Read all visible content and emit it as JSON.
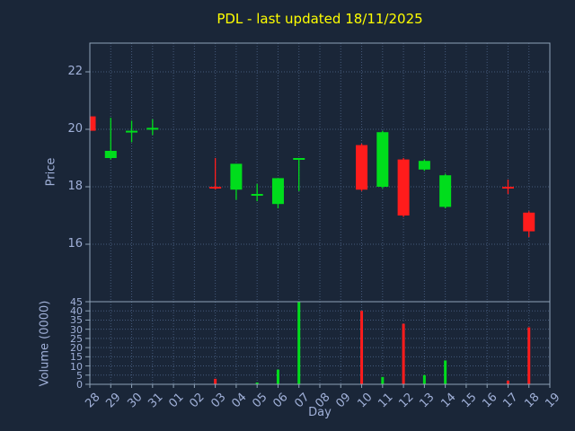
{
  "chart_data": {
    "type": "candlestick",
    "title": "PDL - last updated 18/11/2025",
    "xlabel": "Day",
    "ylabel_price": "Price",
    "ylabel_volume": "Volume (0000)",
    "x_ticks": [
      "28",
      "29",
      "30",
      "31",
      "01",
      "02",
      "03",
      "04",
      "05",
      "06",
      "07",
      "08",
      "09",
      "10",
      "11",
      "12",
      "13",
      "14",
      "15",
      "16",
      "17",
      "18",
      "19"
    ],
    "price_ylim": [
      14.0,
      23.0
    ],
    "price_ticks": [
      16,
      18,
      20,
      22
    ],
    "volume_ylim": [
      0,
      45
    ],
    "volume_ticks": [
      0,
      5,
      10,
      15,
      20,
      25,
      30,
      35,
      40,
      45
    ],
    "grid": true,
    "candles": [
      {
        "day": "28",
        "open": 20.45,
        "close": 19.95,
        "high": 20.45,
        "low": 19.95,
        "color": "red"
      },
      {
        "day": "29",
        "open": 19.0,
        "close": 19.25,
        "high": 20.4,
        "low": 18.95,
        "color": "green"
      },
      {
        "day": "30",
        "open": 19.9,
        "close": 19.95,
        "high": 20.3,
        "low": 19.55,
        "color": "green"
      },
      {
        "day": "31",
        "open": 20.0,
        "close": 20.05,
        "high": 20.35,
        "low": 19.8,
        "color": "green"
      },
      {
        "day": "03",
        "open": 18.0,
        "close": 18.0,
        "high": 19.0,
        "low": 17.9,
        "color": "red"
      },
      {
        "day": "04",
        "open": 17.9,
        "close": 18.8,
        "high": 18.8,
        "low": 17.55,
        "color": "green"
      },
      {
        "day": "05",
        "open": 17.7,
        "close": 17.75,
        "high": 18.1,
        "low": 17.5,
        "color": "green"
      },
      {
        "day": "06",
        "open": 17.4,
        "close": 18.3,
        "high": 18.3,
        "low": 17.25,
        "color": "green"
      },
      {
        "day": "07",
        "open": 19.0,
        "close": 19.0,
        "high": 19.0,
        "low": 17.85,
        "color": "green"
      },
      {
        "day": "10",
        "open": 19.45,
        "close": 17.9,
        "high": 19.5,
        "low": 17.85,
        "color": "red"
      },
      {
        "day": "11",
        "open": 18.0,
        "close": 19.9,
        "high": 19.95,
        "low": 17.95,
        "color": "green"
      },
      {
        "day": "12",
        "open": 18.95,
        "close": 17.0,
        "high": 19.0,
        "low": 16.95,
        "color": "red"
      },
      {
        "day": "13",
        "open": 18.6,
        "close": 18.9,
        "high": 18.95,
        "low": 18.55,
        "color": "green"
      },
      {
        "day": "14",
        "open": 17.3,
        "close": 18.4,
        "high": 18.45,
        "low": 17.25,
        "color": "green"
      },
      {
        "day": "17",
        "open": 18.0,
        "close": 18.0,
        "high": 18.25,
        "low": 17.75,
        "color": "red"
      },
      {
        "day": "18",
        "open": 17.1,
        "close": 16.45,
        "high": 17.15,
        "low": 16.25,
        "color": "red"
      }
    ],
    "volumes": [
      {
        "day": "03",
        "value": 3,
        "color": "red"
      },
      {
        "day": "05",
        "value": 1,
        "color": "green"
      },
      {
        "day": "06",
        "value": 8,
        "color": "green"
      },
      {
        "day": "07",
        "value": 45,
        "color": "green"
      },
      {
        "day": "10",
        "value": 40,
        "color": "red"
      },
      {
        "day": "11",
        "value": 4,
        "color": "green"
      },
      {
        "day": "12",
        "value": 33,
        "color": "red"
      },
      {
        "day": "13",
        "value": 5,
        "color": "green"
      },
      {
        "day": "14",
        "value": 13,
        "color": "green"
      },
      {
        "day": "17",
        "value": 2,
        "color": "red"
      },
      {
        "day": "18",
        "value": 31,
        "color": "red"
      }
    ],
    "colors": {
      "background": "#1a2638",
      "grid": "#44597a",
      "border": "#8fa3b8",
      "text": "#a0b0d8",
      "title": "#ffff00",
      "red": "#ff1c1c",
      "green": "#00dd1c"
    },
    "legend": "none"
  }
}
